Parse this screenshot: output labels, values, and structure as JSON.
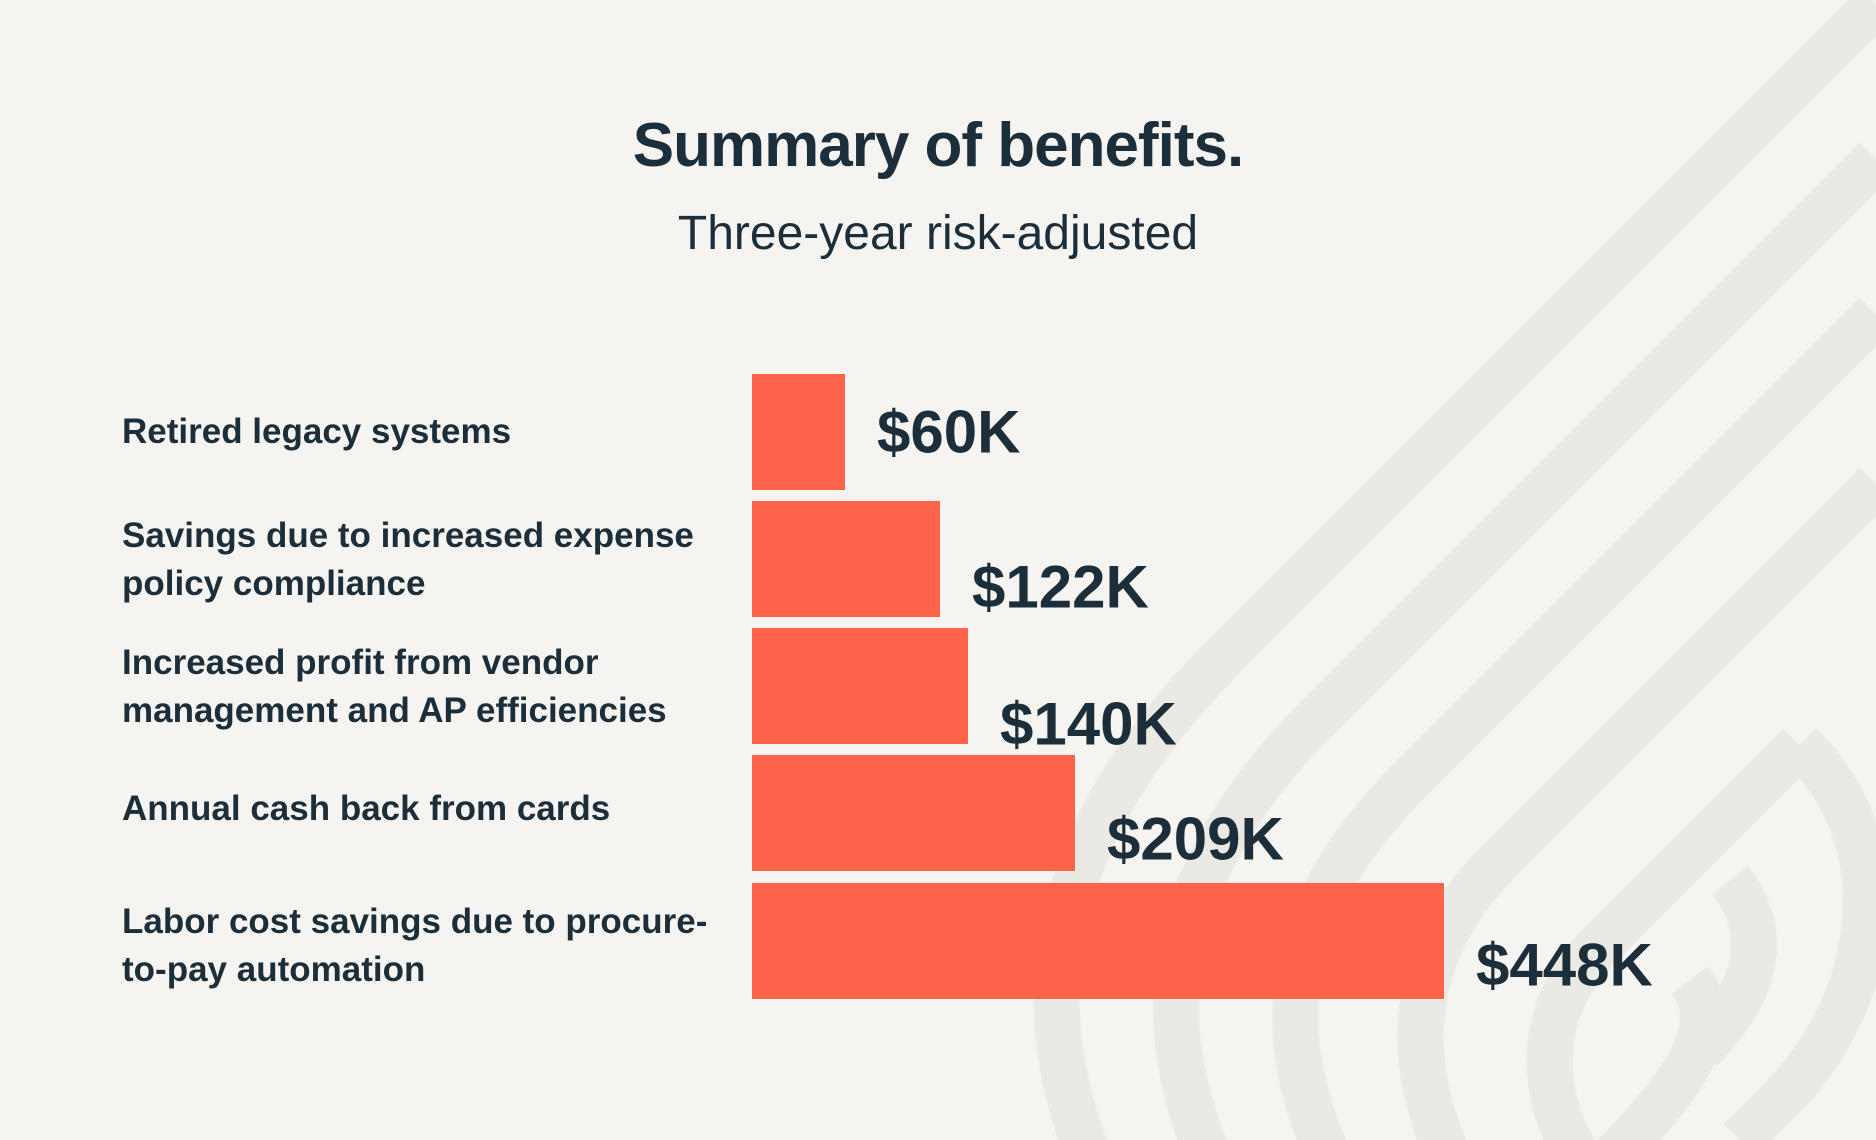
{
  "colors": {
    "background": "#f5f4f1",
    "bar": "#ff634a",
    "text": "#1b2e3a",
    "pattern": "#ebe9e4"
  },
  "chart_data": {
    "type": "bar",
    "orientation": "horizontal",
    "title": "Summary of benefits.",
    "subtitle": "Three-year risk-adjusted",
    "categories": [
      "Retired legacy systems",
      "Savings due to increased expense policy compliance",
      "Increased profit from vendor management and AP efficiencies",
      "Annual cash back from cards",
      "Labor cost savings due to procure-to-pay automation"
    ],
    "values": [
      60,
      122,
      140,
      209,
      448
    ],
    "value_labels": [
      "$60K",
      "$122K",
      "$140K",
      "$209K",
      "$448K"
    ],
    "grid": false,
    "legend": "none"
  }
}
